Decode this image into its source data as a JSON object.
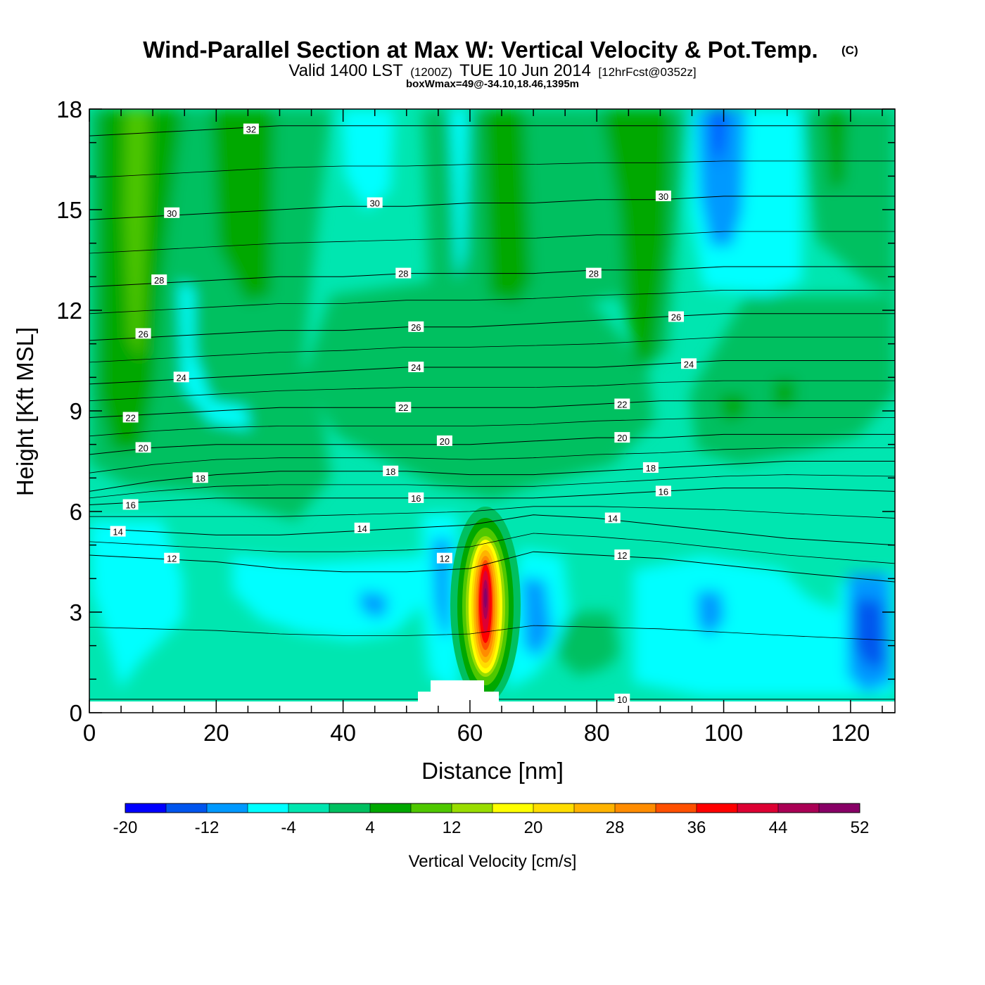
{
  "header": {
    "title": "Wind-Parallel Section at Max W: Vertical Velocity & Pot.Temp.",
    "copyright": "(C)",
    "valid_prefix": "Valid 1400 LST",
    "valid_utc": "(1200Z)",
    "valid_date": "TUE 10 Jun 2014",
    "forecast": "[12hrFcst@0352z]",
    "box_info": "boxWmax=49@-34.10,18.46,1395m"
  },
  "chart_data": {
    "type": "contour",
    "title": "Wind-Parallel Section at Max W: Vertical Velocity & Pot.Temp.",
    "xlabel": "Distance [nm]",
    "ylabel": "Height [Kft MSL]",
    "xlim": [
      0,
      127
    ],
    "ylim": [
      0,
      18
    ],
    "xticks": [
      0,
      20,
      40,
      60,
      80,
      100,
      120
    ],
    "yticks": [
      0,
      3,
      6,
      9,
      12,
      15,
      18
    ],
    "colorbar": {
      "label": "Vertical Velocity [cm/s]",
      "levels": [
        -20,
        -16,
        -12,
        -8,
        -4,
        0,
        4,
        8,
        12,
        16,
        20,
        24,
        28,
        32,
        36,
        40,
        44,
        48,
        52
      ],
      "tick_labels": [
        "-20",
        "-12",
        "-4",
        "4",
        "12",
        "20",
        "28",
        "36",
        "44",
        "52"
      ],
      "colors": [
        "#0000ff",
        "#0055ee",
        "#0099ff",
        "#00ffff",
        "#00e6b0",
        "#00c060",
        "#00a800",
        "#4fc800",
        "#99dd00",
        "#ffff00",
        "#ffdd00",
        "#ffb300",
        "#ff8c00",
        "#ff5000",
        "#ff0000",
        "#dd0033",
        "#aa0055",
        "#880066"
      ]
    },
    "theta_contours": [
      {
        "level": 10,
        "y": [
          0.4,
          0.4,
          0.4,
          0.4,
          0.4,
          0.4,
          0.4,
          0.4,
          0.4,
          0.4,
          0.4,
          0.4,
          0.4
        ]
      },
      {
        "level": 12,
        "y": [
          4.7,
          4.6,
          4.5,
          4.3,
          4.2,
          4.2,
          4.3,
          4.8,
          4.7,
          4.6,
          4.4,
          4.2,
          3.9
        ]
      },
      {
        "level": 14,
        "y": [
          5.5,
          5.4,
          5.3,
          5.3,
          5.4,
          5.5,
          5.6,
          5.9,
          5.8,
          5.6,
          5.4,
          5.2,
          5.0
        ]
      },
      {
        "level": 16,
        "y": [
          6.2,
          6.3,
          6.4,
          6.4,
          6.4,
          6.4,
          6.4,
          6.4,
          6.5,
          6.6,
          6.7,
          6.7,
          6.6
        ]
      },
      {
        "level": 18,
        "y": [
          6.6,
          6.9,
          7.1,
          7.2,
          7.2,
          7.2,
          7.1,
          7.1,
          7.2,
          7.3,
          7.4,
          7.5,
          7.5
        ]
      },
      {
        "level": 20,
        "y": [
          7.7,
          7.9,
          8.0,
          8.0,
          8.0,
          8.0,
          8.0,
          8.1,
          8.2,
          8.2,
          8.3,
          8.3,
          8.3
        ]
      },
      {
        "level": 22,
        "y": [
          8.8,
          8.9,
          9.0,
          9.1,
          9.1,
          9.1,
          9.1,
          9.1,
          9.2,
          9.3,
          9.3,
          9.3,
          9.3
        ]
      },
      {
        "level": 24,
        "y": [
          9.8,
          9.9,
          10.0,
          10.1,
          10.2,
          10.3,
          10.3,
          10.3,
          10.3,
          10.4,
          10.5,
          10.5,
          10.5
        ]
      },
      {
        "level": 26,
        "y": [
          11.1,
          11.2,
          11.3,
          11.4,
          11.4,
          11.5,
          11.5,
          11.6,
          11.7,
          11.8,
          11.9,
          11.9,
          11.9
        ]
      },
      {
        "level": 28,
        "y": [
          12.7,
          12.8,
          12.9,
          13.0,
          13.0,
          13.1,
          13.1,
          13.1,
          13.2,
          13.2,
          13.3,
          13.3,
          13.3
        ]
      },
      {
        "level": 30,
        "y": [
          14.7,
          14.8,
          14.9,
          15.0,
          15.1,
          15.1,
          15.2,
          15.2,
          15.3,
          15.3,
          15.4,
          15.4,
          15.4
        ]
      },
      {
        "level": 32,
        "y": [
          17.2,
          17.3,
          17.4,
          17.5,
          17.5,
          17.5,
          17.5,
          17.5,
          17.5,
          17.5,
          17.5,
          17.5,
          17.5
        ]
      }
    ],
    "theta_x": [
      0,
      10,
      20,
      30,
      40,
      50,
      60,
      70,
      80,
      90,
      100,
      110,
      127
    ],
    "contour_labels": [
      {
        "text": "32",
        "x": 25.5,
        "y": 17.4
      },
      {
        "text": "30",
        "x": 13,
        "y": 14.9
      },
      {
        "text": "30",
        "x": 45,
        "y": 15.2
      },
      {
        "text": "30",
        "x": 90.5,
        "y": 15.4
      },
      {
        "text": "28",
        "x": 11,
        "y": 12.9
      },
      {
        "text": "28",
        "x": 49.5,
        "y": 13.1
      },
      {
        "text": "28",
        "x": 79.5,
        "y": 13.1
      },
      {
        "text": "26",
        "x": 8.5,
        "y": 11.3
      },
      {
        "text": "26",
        "x": 51.5,
        "y": 11.5
      },
      {
        "text": "26",
        "x": 92.5,
        "y": 11.8
      },
      {
        "text": "24",
        "x": 14.5,
        "y": 10.0
      },
      {
        "text": "24",
        "x": 51.5,
        "y": 10.3
      },
      {
        "text": "24",
        "x": 94.5,
        "y": 10.4
      },
      {
        "text": "22",
        "x": 6.5,
        "y": 8.8
      },
      {
        "text": "22",
        "x": 49.5,
        "y": 9.1
      },
      {
        "text": "22",
        "x": 84,
        "y": 9.2
      },
      {
        "text": "20",
        "x": 8.5,
        "y": 7.9
      },
      {
        "text": "20",
        "x": 56,
        "y": 8.1
      },
      {
        "text": "20",
        "x": 84,
        "y": 8.2
      },
      {
        "text": "18",
        "x": 17.5,
        "y": 7.0
      },
      {
        "text": "18",
        "x": 47.5,
        "y": 7.2
      },
      {
        "text": "18",
        "x": 88.5,
        "y": 7.3
      },
      {
        "text": "16",
        "x": 6.5,
        "y": 6.2
      },
      {
        "text": "16",
        "x": 51.5,
        "y": 6.4
      },
      {
        "text": "16",
        "x": 90.5,
        "y": 6.6
      },
      {
        "text": "14",
        "x": 4.5,
        "y": 5.4
      },
      {
        "text": "14",
        "x": 43,
        "y": 5.5
      },
      {
        "text": "14",
        "x": 82.5,
        "y": 5.8
      },
      {
        "text": "12",
        "x": 13,
        "y": 4.6
      },
      {
        "text": "12",
        "x": 56,
        "y": 4.6
      },
      {
        "text": "12",
        "x": 84,
        "y": 4.7
      },
      {
        "text": "10",
        "x": 84,
        "y": 0.4
      }
    ]
  }
}
